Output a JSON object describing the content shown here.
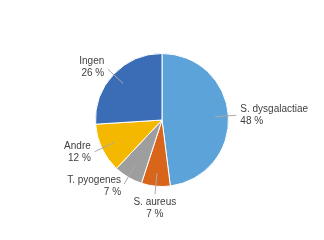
{
  "chart_data": {
    "type": "pie",
    "categories": [
      "S. dysgalactiae",
      "S. aureus",
      "T. pyogenes",
      "Andre",
      "Ingen"
    ],
    "values": [
      48,
      7,
      7,
      12,
      26
    ],
    "value_labels": [
      "48 %",
      "7 %",
      "7 %",
      "12 %",
      "26 %"
    ],
    "colors": [
      "#5ba3d9",
      "#d9651a",
      "#9e9e9e",
      "#f5b800",
      "#3a6db5"
    ],
    "data_labels": true
  }
}
